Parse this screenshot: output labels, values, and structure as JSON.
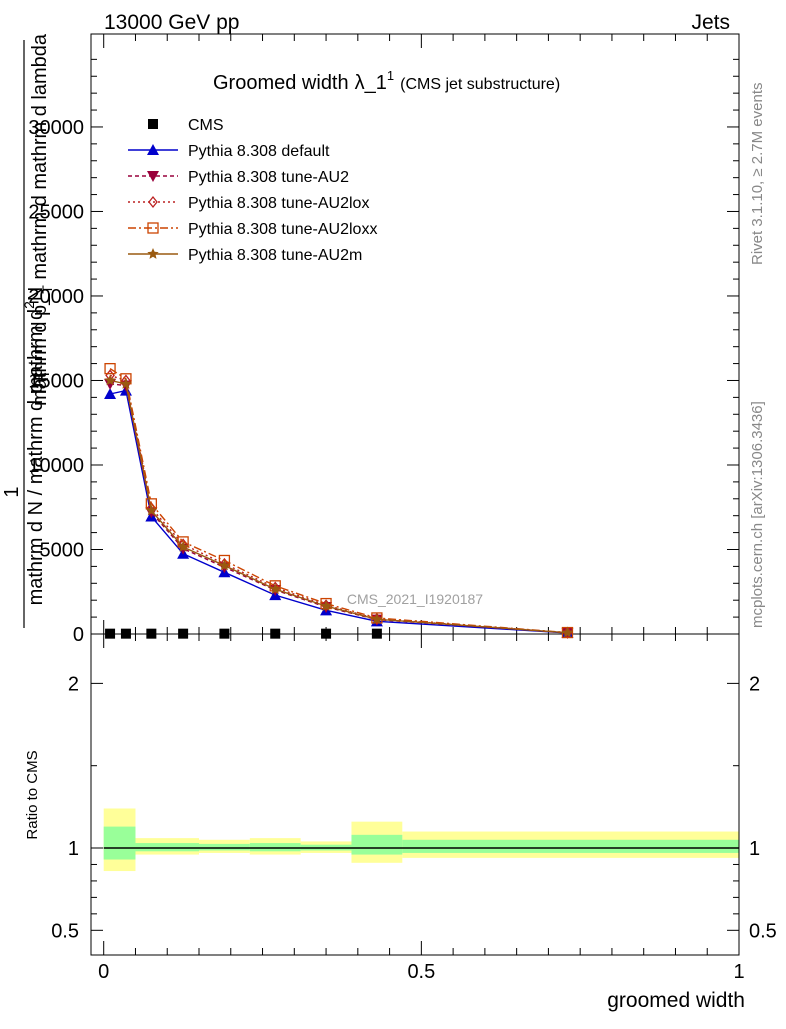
{
  "header": {
    "left": "13000 GeV pp",
    "right": "Jets"
  },
  "main_panel": {
    "title_main": "Groomed width",
    "title_lambda": "λ_1",
    "title_sup": "1",
    "title_sub": "(CMS jet substructure)",
    "ylabel_top": "mathrm d",
    "ylabel_N": "N",
    "ylabel_mid": "mathrm d p_",
    "ylabel_T1": "T",
    "ylabel_mid2": " mathrm d mathrm d lambda",
    "ylabel_one": "1",
    "ylabel_denom": "mathrm d N / mathrm d p",
    "ylabel_T2": "T",
    "watermark": "CMS_2021_I1920187"
  },
  "right_labels": {
    "rivet": "Rivet 3.1.10, ≥ 2.7M events",
    "mcplots": "mcplots.cern.ch [arXiv:1306.3436]"
  },
  "ratio_panel": {
    "ylabel": "Ratio to CMS"
  },
  "xlabel": "groomed width",
  "chart_data": [
    {
      "type": "line",
      "title": "Groomed width λ_1^1 (CMS jet substructure)",
      "xlabel": "groomed width",
      "ylabel": "1/(mathrm d N / mathrm d p_T) mathrm d^2N / (mathrm d p_T mathrm d mathrm d lambda)",
      "xlim": [
        -0.02,
        1.0
      ],
      "ylim": [
        0,
        35500
      ],
      "x_ticks": [
        0,
        0.5,
        1
      ],
      "x_tick_labels": [
        "0",
        "0.5",
        "1"
      ],
      "y_ticks": [
        0,
        5000,
        10000,
        15000,
        20000,
        25000,
        30000
      ],
      "y_tick_labels": [
        "0",
        "5000",
        "10000",
        "15000",
        "20000",
        "25000",
        "30000"
      ],
      "legend": "top-left",
      "series": [
        {
          "name": "CMS",
          "color": "#000000",
          "marker": "square",
          "x": [
            0.01,
            0.035,
            0.075,
            0.125,
            0.19,
            0.27,
            0.35,
            0.43
          ],
          "y": [
            20,
            20,
            20,
            20,
            20,
            20,
            20,
            20
          ]
        },
        {
          "name": "Pythia 8.308 default",
          "color": "#0000cc",
          "marker": "triangle-up",
          "dash": "",
          "x": [
            0.01,
            0.035,
            0.075,
            0.125,
            0.19,
            0.27,
            0.35,
            0.43,
            0.73
          ],
          "y": [
            14200,
            14400,
            6950,
            4750,
            3650,
            2300,
            1400,
            750,
            60
          ]
        },
        {
          "name": "Pythia 8.308 tune-AU2",
          "color": "#99003b",
          "marker": "triangle-down",
          "dash": "4 3",
          "x": [
            0.01,
            0.035,
            0.075,
            0.125,
            0.19,
            0.27,
            0.35,
            0.43,
            0.73
          ],
          "y": [
            14800,
            14700,
            7200,
            5050,
            3950,
            2600,
            1600,
            850,
            70
          ]
        },
        {
          "name": "Pythia 8.308 tune-AU2lox",
          "color": "#bb2020",
          "marker": "diamond-open",
          "dash": "2 3",
          "x": [
            0.01,
            0.035,
            0.075,
            0.125,
            0.19,
            0.27,
            0.35,
            0.43,
            0.73
          ],
          "y": [
            15300,
            15000,
            7450,
            5300,
            4150,
            2750,
            1700,
            900,
            80
          ]
        },
        {
          "name": "Pythia 8.308 tune-AU2loxx",
          "color": "#cc4400",
          "marker": "square-open",
          "dash": "8 3 2 3",
          "x": [
            0.01,
            0.035,
            0.075,
            0.125,
            0.19,
            0.27,
            0.35,
            0.43,
            0.73
          ],
          "y": [
            15700,
            15100,
            7700,
            5450,
            4350,
            2850,
            1800,
            950,
            85
          ]
        },
        {
          "name": "Pythia 8.308 tune-AU2m",
          "color": "#9a5a10",
          "marker": "star",
          "dash": "",
          "x": [
            0.01,
            0.035,
            0.075,
            0.125,
            0.19,
            0.27,
            0.35,
            0.43,
            0.73
          ],
          "y": [
            15000,
            14800,
            7300,
            5150,
            4050,
            2650,
            1650,
            870,
            75
          ]
        }
      ]
    },
    {
      "type": "area",
      "ylabel": "Ratio to CMS",
      "xlim": [
        -0.02,
        1.0
      ],
      "ylim": [
        0.35,
        2.3
      ],
      "y_ticks": [
        0.5,
        1,
        2
      ],
      "y_tick_labels": [
        "0.5",
        "1",
        "2"
      ],
      "bins": [
        {
          "x0": 0.0,
          "x1": 0.05,
          "yellow": [
            0.86,
            1.24
          ],
          "green": [
            0.93,
            1.13
          ]
        },
        {
          "x0": 0.05,
          "x1": 0.15,
          "yellow": [
            0.96,
            1.06
          ],
          "green": [
            0.98,
            1.03
          ]
        },
        {
          "x0": 0.15,
          "x1": 0.23,
          "yellow": [
            0.97,
            1.05
          ],
          "green": [
            0.985,
            1.025
          ]
        },
        {
          "x0": 0.23,
          "x1": 0.31,
          "yellow": [
            0.96,
            1.06
          ],
          "green": [
            0.98,
            1.03
          ]
        },
        {
          "x0": 0.31,
          "x1": 0.39,
          "yellow": [
            0.97,
            1.04
          ],
          "green": [
            0.985,
            1.02
          ]
        },
        {
          "x0": 0.39,
          "x1": 0.47,
          "yellow": [
            0.91,
            1.16
          ],
          "green": [
            0.96,
            1.08
          ]
        },
        {
          "x0": 0.47,
          "x1": 1.0,
          "yellow": [
            0.94,
            1.1
          ],
          "green": [
            0.97,
            1.05
          ]
        }
      ],
      "reference": 1
    }
  ]
}
